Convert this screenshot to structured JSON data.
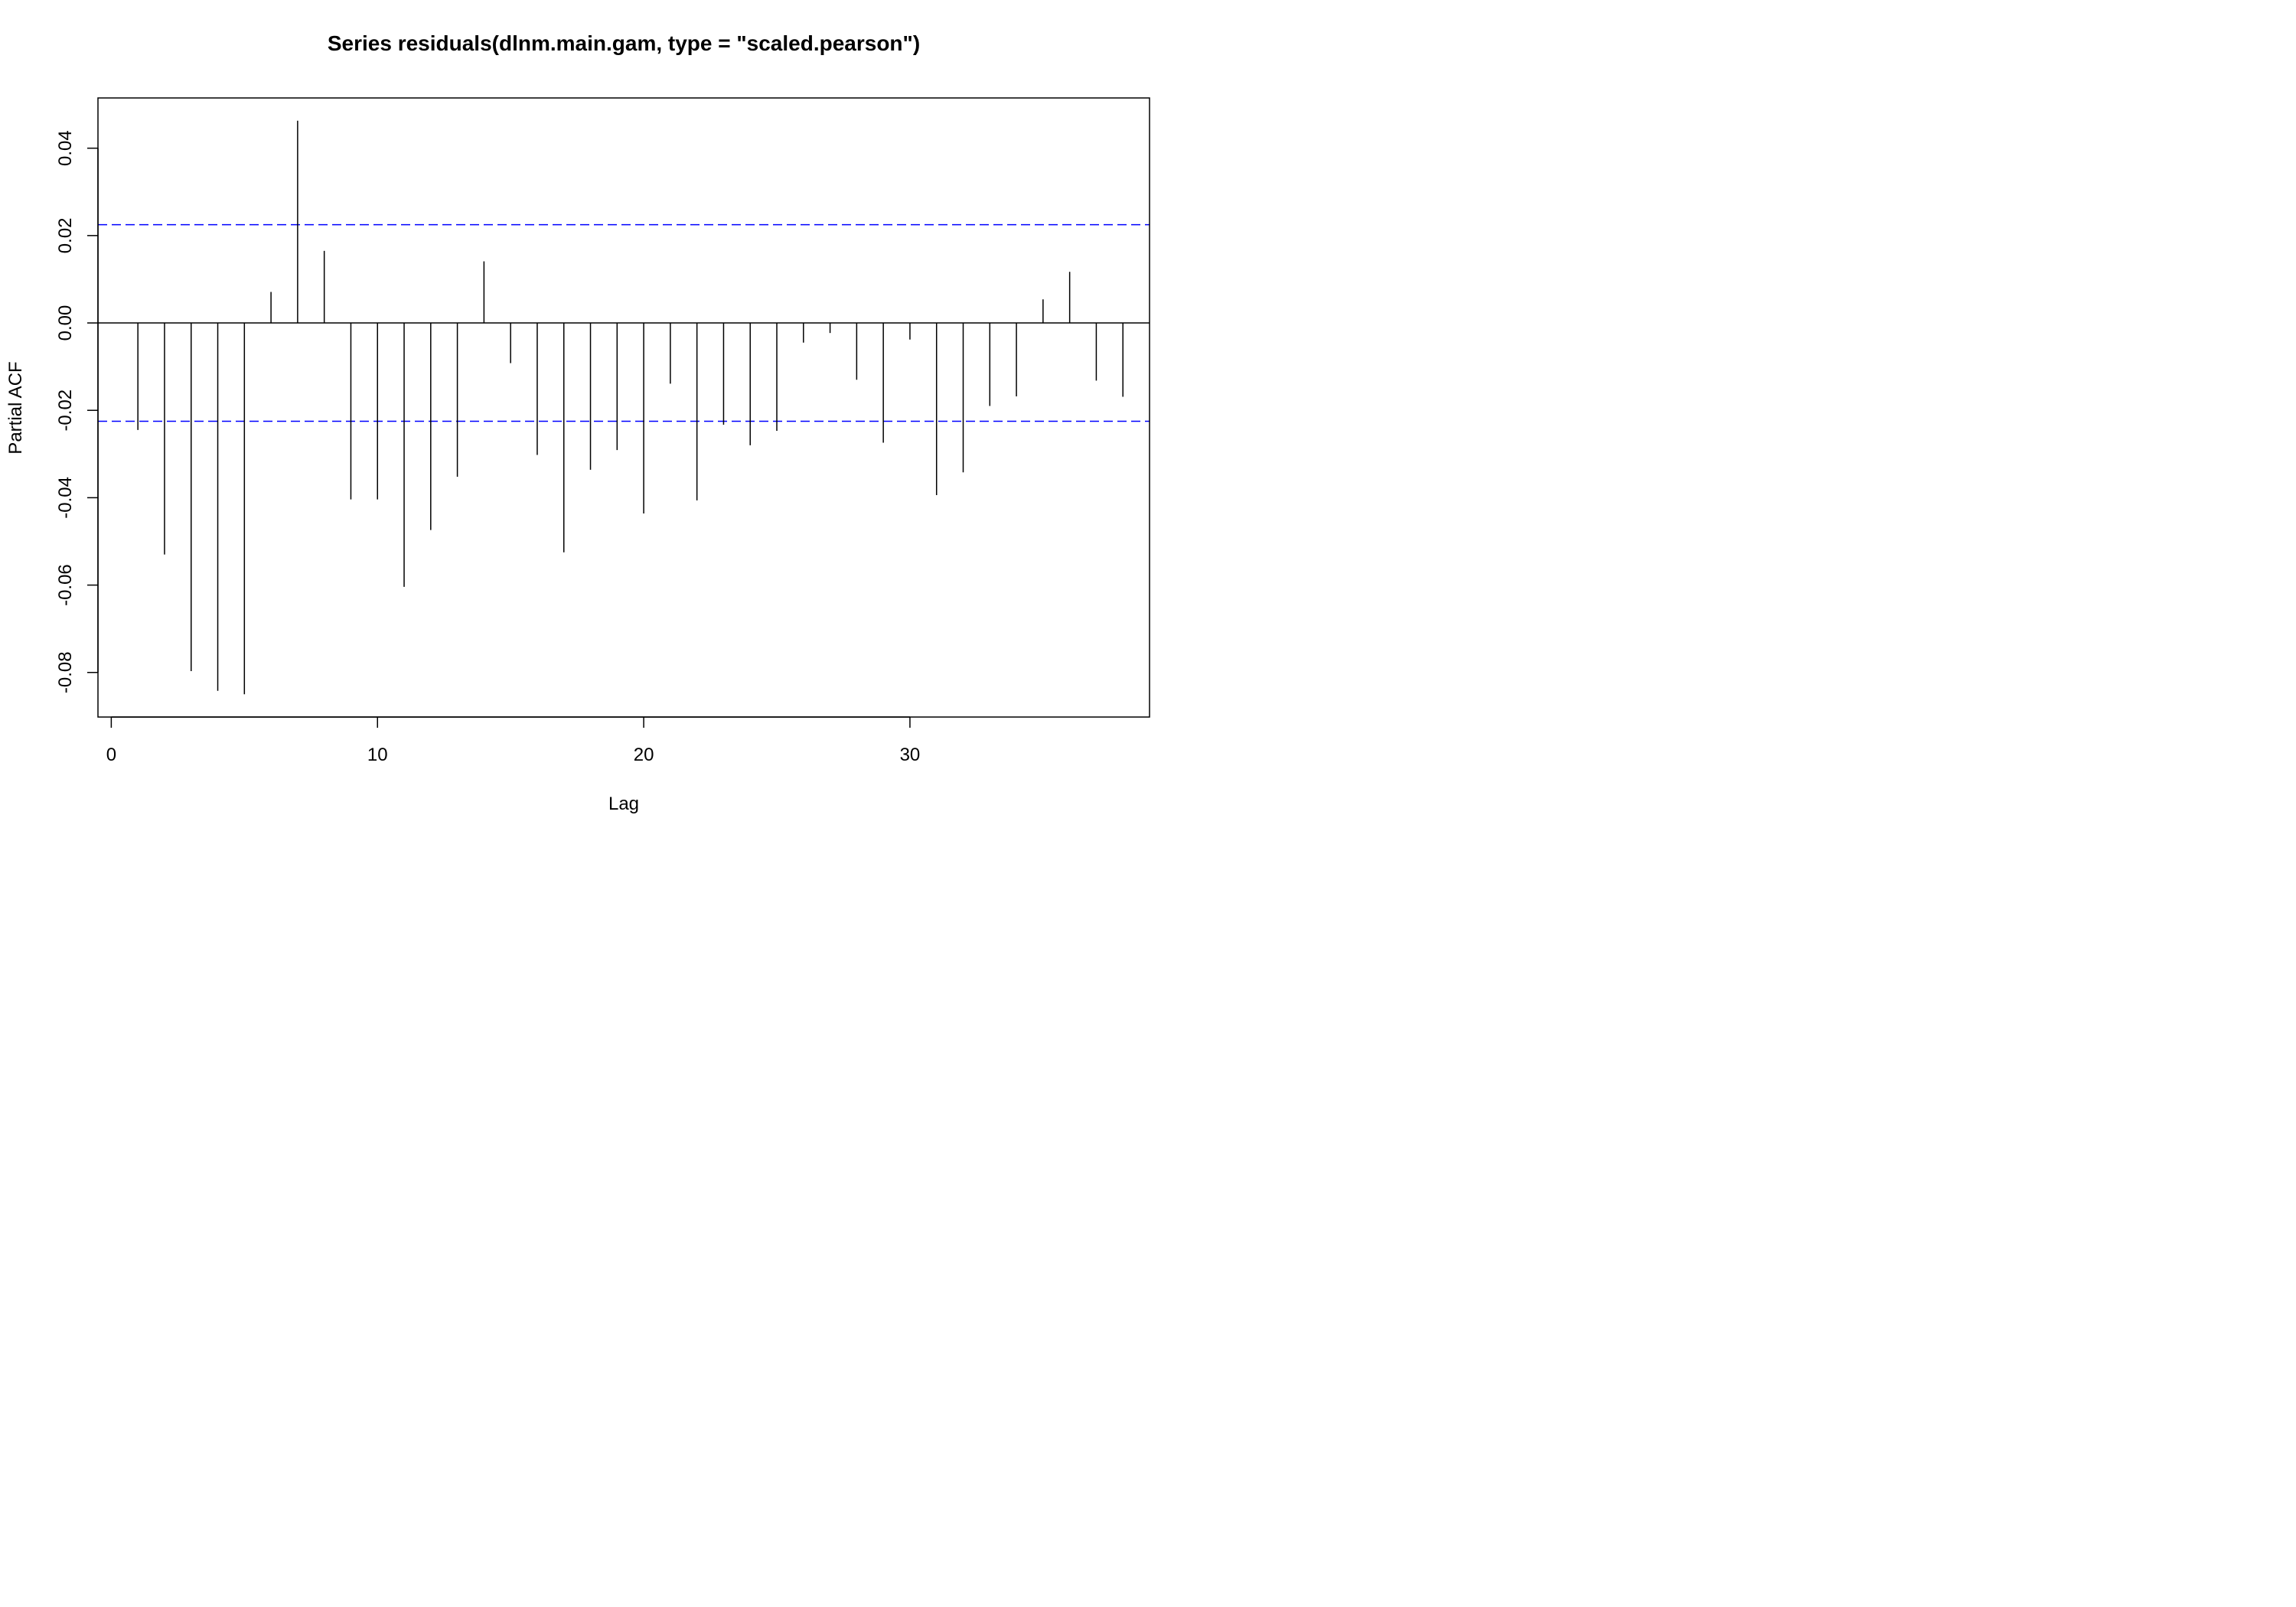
{
  "chart_data": {
    "type": "bar",
    "title": "Series  residuals(dlnm.main.gam, type = \"scaled.pearson\")",
    "xlabel": "Lag",
    "ylabel": "Partial ACF",
    "xlim": [
      -0.5,
      39
    ],
    "ylim": [
      -0.0902,
      0.0515
    ],
    "x_ticks": [
      0,
      10,
      20,
      30
    ],
    "y_ticks": [
      -0.08,
      -0.06,
      -0.04,
      -0.02,
      0.0,
      0.02,
      0.04
    ],
    "y_tick_labels": [
      "-0.08",
      "-0.06",
      "-0.04",
      "-0.02",
      "0.00",
      "0.02",
      "0.04"
    ],
    "confidence_bound": 0.0225,
    "line_color": "#000000",
    "bound_color": "#0000ff",
    "grid": false,
    "x": [
      1,
      2,
      3,
      4,
      5,
      6,
      7,
      8,
      9,
      10,
      11,
      12,
      13,
      14,
      15,
      16,
      17,
      18,
      19,
      20,
      21,
      22,
      23,
      24,
      25,
      26,
      27,
      28,
      29,
      30,
      31,
      32,
      33,
      34,
      35,
      36,
      37,
      38
    ],
    "values": [
      -0.0245,
      -0.053,
      -0.0797,
      -0.0842,
      -0.085,
      0.0071,
      0.0463,
      0.0165,
      -0.0404,
      -0.0404,
      -0.0604,
      -0.0474,
      -0.0352,
      0.0141,
      -0.0092,
      -0.0302,
      -0.0525,
      -0.0336,
      -0.0291,
      -0.0436,
      -0.0139,
      -0.0406,
      -0.0233,
      -0.028,
      -0.0247,
      -0.0045,
      -0.0023,
      -0.013,
      -0.0274,
      -0.0038,
      -0.0394,
      -0.0342,
      -0.019,
      -0.0168,
      0.0054,
      0.0117,
      -0.0132,
      -0.0169
    ]
  }
}
